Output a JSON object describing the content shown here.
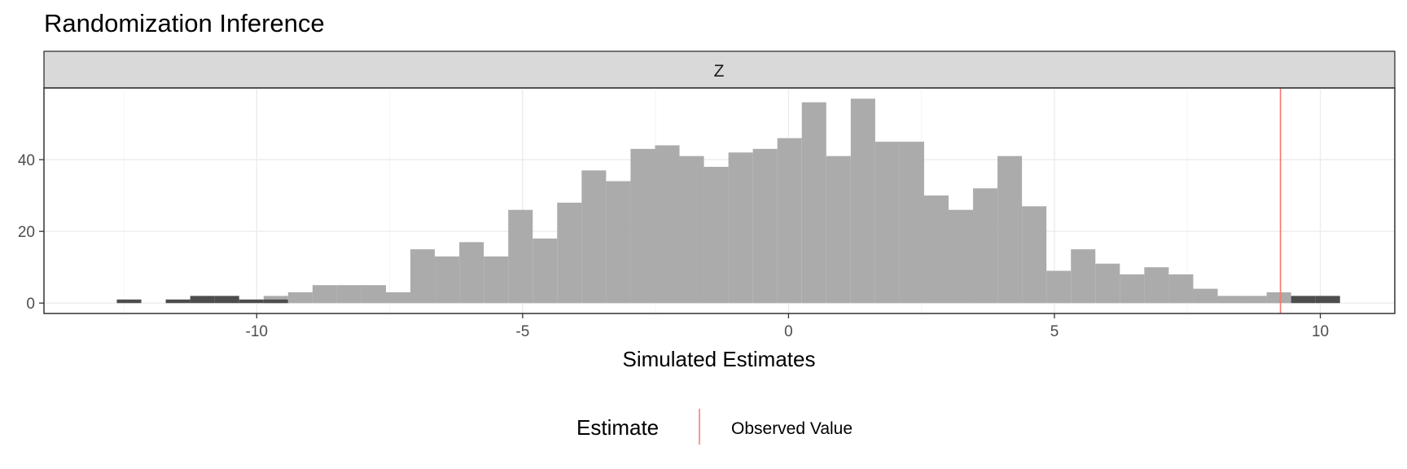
{
  "chart_data": {
    "type": "bar",
    "title": "Randomization Inference",
    "facet_label": "Z",
    "xlabel": "Simulated Estimates",
    "ylabel": "",
    "xlim": [
      -14,
      11.4
    ],
    "ylim": [
      -2.9,
      60
    ],
    "x_ticks": [
      -10,
      -5,
      0,
      5,
      10
    ],
    "y_ticks": [
      0,
      20,
      40
    ],
    "grid": true,
    "bin_width": 0.46,
    "bin_start": -12.63,
    "bins": [
      {
        "x0": -12.63,
        "count": 1,
        "extreme": true
      },
      {
        "x0": -12.17,
        "count": 0,
        "extreme": true
      },
      {
        "x0": -11.71,
        "count": 1,
        "extreme": true
      },
      {
        "x0": -11.25,
        "count": 2,
        "extreme": true
      },
      {
        "x0": -10.79,
        "count": 2,
        "extreme": true
      },
      {
        "x0": -10.33,
        "count": 1,
        "extreme": true
      },
      {
        "x0": -9.87,
        "count": 2,
        "extreme": false
      },
      {
        "x0": -9.87,
        "count": 1,
        "extreme": true
      },
      {
        "x0": -9.41,
        "count": 3,
        "extreme": false
      },
      {
        "x0": -8.95,
        "count": 5,
        "extreme": false
      },
      {
        "x0": -8.49,
        "count": 5,
        "extreme": false
      },
      {
        "x0": -8.03,
        "count": 5,
        "extreme": false
      },
      {
        "x0": -7.57,
        "count": 3,
        "extreme": false
      },
      {
        "x0": -7.11,
        "count": 15,
        "extreme": false
      },
      {
        "x0": -6.65,
        "count": 13,
        "extreme": false
      },
      {
        "x0": -6.19,
        "count": 17,
        "extreme": false
      },
      {
        "x0": -5.73,
        "count": 13,
        "extreme": false
      },
      {
        "x0": -5.27,
        "count": 26,
        "extreme": false
      },
      {
        "x0": -4.81,
        "count": 18,
        "extreme": false
      },
      {
        "x0": -4.35,
        "count": 28,
        "extreme": false
      },
      {
        "x0": -3.89,
        "count": 37,
        "extreme": false
      },
      {
        "x0": -3.43,
        "count": 34,
        "extreme": false
      },
      {
        "x0": -2.97,
        "count": 43,
        "extreme": false
      },
      {
        "x0": -2.51,
        "count": 44,
        "extreme": false
      },
      {
        "x0": -2.05,
        "count": 41,
        "extreme": false
      },
      {
        "x0": -1.59,
        "count": 38,
        "extreme": false
      },
      {
        "x0": -1.13,
        "count": 42,
        "extreme": false
      },
      {
        "x0": -0.67,
        "count": 43,
        "extreme": false
      },
      {
        "x0": -0.21,
        "count": 46,
        "extreme": false
      },
      {
        "x0": 0.25,
        "count": 56,
        "extreme": false
      },
      {
        "x0": 0.71,
        "count": 41,
        "extreme": false
      },
      {
        "x0": 1.17,
        "count": 57,
        "extreme": false
      },
      {
        "x0": 1.63,
        "count": 45,
        "extreme": false
      },
      {
        "x0": 2.09,
        "count": 45,
        "extreme": false
      },
      {
        "x0": 2.55,
        "count": 30,
        "extreme": false
      },
      {
        "x0": 3.01,
        "count": 26,
        "extreme": false
      },
      {
        "x0": 3.47,
        "count": 32,
        "extreme": false
      },
      {
        "x0": 3.93,
        "count": 41,
        "extreme": false
      },
      {
        "x0": 4.39,
        "count": 27,
        "extreme": false
      },
      {
        "x0": 4.85,
        "count": 9,
        "extreme": false
      },
      {
        "x0": 5.31,
        "count": 15,
        "extreme": false
      },
      {
        "x0": 5.77,
        "count": 11,
        "extreme": false
      },
      {
        "x0": 6.23,
        "count": 8,
        "extreme": false
      },
      {
        "x0": 6.69,
        "count": 10,
        "extreme": false
      },
      {
        "x0": 7.15,
        "count": 8,
        "extreme": false
      },
      {
        "x0": 7.61,
        "count": 4,
        "extreme": false
      },
      {
        "x0": 8.07,
        "count": 2,
        "extreme": false
      },
      {
        "x0": 8.53,
        "count": 2,
        "extreme": false
      },
      {
        "x0": 8.99,
        "count": 3,
        "extreme": false
      },
      {
        "x0": 9.45,
        "count": 2,
        "extreme": true
      },
      {
        "x0": 9.91,
        "count": 2,
        "extreme": true
      }
    ],
    "observed_value": 9.25,
    "legend": {
      "title": "Estimate",
      "label": "Observed Value",
      "position": "bottom"
    },
    "colors": {
      "bar": "#ababab",
      "bar_extreme": "#4d4d4d",
      "observed_line": "#f8766d",
      "strip_bg": "#d9d9d9",
      "grid_major": "#ebebeb",
      "grid_minor": "#f5f5f5",
      "frame": "#333333"
    }
  }
}
